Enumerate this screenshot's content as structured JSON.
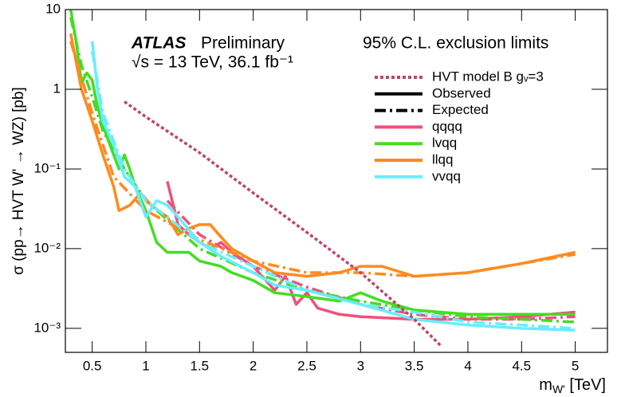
{
  "chart_data": {
    "type": "line",
    "log_y": true,
    "y_label": "σ (pp→ HVT W' → WZ) [pb]",
    "x_label": {
      "main": "m",
      "sub": "W'",
      "rest": " [TeV]"
    },
    "annotations": {
      "experiment": "ATLAS",
      "status": "Preliminary",
      "energy": "√s = 13 TeV, 36.1 fb⁻¹",
      "limits": "95% C.L. exclusion limits"
    },
    "xlim": [
      0.25,
      5.3
    ],
    "ylim": [
      0.0005,
      10
    ],
    "xticks": [
      0.5,
      1,
      1.5,
      2,
      2.5,
      3,
      3.5,
      4,
      4.5,
      5
    ],
    "yticks": [
      {
        "value": 0.001,
        "label": "10⁻³"
      },
      {
        "value": 0.01,
        "label": "10⁻²"
      },
      {
        "value": 0.1,
        "label": "10⁻¹"
      },
      1,
      10
    ],
    "model": {
      "name": "HVT model B gᵥ=3",
      "color": "#c0446e",
      "dash": "dotted",
      "x": [
        0.8,
        1,
        1.5,
        2,
        2.5,
        3,
        3.5,
        3.75
      ],
      "values": [
        0.7,
        0.45,
        0.16,
        0.05,
        0.016,
        0.005,
        0.0013,
        0.0006
      ]
    },
    "styles": [
      {
        "name": "Observed",
        "dash": "solid"
      },
      {
        "name": "Expected",
        "dash": "dashdot"
      }
    ],
    "channels": [
      {
        "name": "qqqq",
        "color": "#f0507a",
        "observed": {
          "x": [
            1.2,
            1.3,
            1.4,
            1.5,
            1.6,
            1.7,
            1.8,
            2.0,
            2.2,
            2.3,
            2.4,
            2.5,
            2.6,
            2.8,
            3,
            3.5,
            4,
            4.5,
            5
          ],
          "values": [
            0.07,
            0.02,
            0.015,
            0.012,
            0.01,
            0.012,
            0.009,
            0.006,
            0.003,
            0.0045,
            0.002,
            0.0028,
            0.0018,
            0.0015,
            0.0014,
            0.0013,
            0.0013,
            0.0014,
            0.0016
          ]
        },
        "expected": {
          "x": [
            1.2,
            1.5,
            2,
            2.5,
            3,
            3.5,
            4,
            4.5,
            5
          ],
          "values": [
            0.04,
            0.015,
            0.006,
            0.0033,
            0.002,
            0.0015,
            0.0013,
            0.0013,
            0.0014
          ]
        }
      },
      {
        "name": "lvqq",
        "color": "#44dd22",
        "observed": {
          "x": [
            0.3,
            0.35,
            0.4,
            0.45,
            0.5,
            0.55,
            0.6,
            0.7,
            0.75,
            0.8,
            0.85,
            0.9,
            1.0,
            1.1,
            1.2,
            1.4,
            1.5,
            1.7,
            1.8,
            2,
            2.2,
            2.5,
            2.8,
            3.0,
            3.2,
            3.5,
            4,
            4.5,
            5
          ],
          "values": [
            10,
            4,
            1.2,
            1.6,
            1.3,
            0.6,
            0.35,
            0.15,
            0.1,
            0.15,
            0.1,
            0.06,
            0.03,
            0.012,
            0.009,
            0.009,
            0.007,
            0.006,
            0.005,
            0.004,
            0.0028,
            0.0025,
            0.0022,
            0.0028,
            0.0022,
            0.0017,
            0.0015,
            0.0015,
            0.0015
          ]
        },
        "expected": {
          "x": [
            0.3,
            0.4,
            0.5,
            0.6,
            0.8,
            1,
            1.5,
            2,
            2.5,
            3,
            3.5,
            4,
            4.5,
            5
          ],
          "values": [
            8,
            2,
            0.8,
            0.3,
            0.1,
            0.04,
            0.01,
            0.005,
            0.003,
            0.0022,
            0.0017,
            0.0014,
            0.0013,
            0.0012
          ]
        }
      },
      {
        "name": "llqq",
        "color": "#ff8a1f",
        "observed": {
          "x": [
            0.3,
            0.4,
            0.5,
            0.6,
            0.7,
            0.75,
            0.85,
            0.95,
            1.05,
            1.2,
            1.3,
            1.4,
            1.5,
            1.6,
            1.7,
            1.8,
            2,
            2.2,
            2.5,
            2.8,
            3.0,
            3.2,
            3.5,
            4,
            4.5,
            5
          ],
          "values": [
            5,
            1.0,
            0.4,
            0.15,
            0.06,
            0.03,
            0.035,
            0.05,
            0.035,
            0.025,
            0.015,
            0.018,
            0.02,
            0.02,
            0.014,
            0.01,
            0.007,
            0.005,
            0.0045,
            0.005,
            0.006,
            0.006,
            0.0045,
            0.005,
            0.0065,
            0.009
          ]
        },
        "expected": {
          "x": [
            0.3,
            0.5,
            0.7,
            1,
            1.5,
            2,
            2.5,
            3,
            3.5,
            4,
            4.5,
            5
          ],
          "values": [
            4,
            0.5,
            0.08,
            0.03,
            0.013,
            0.007,
            0.005,
            0.005,
            0.0045,
            0.005,
            0.0065,
            0.0085
          ]
        }
      },
      {
        "name": "vvqq",
        "color": "#66eeff",
        "observed": {
          "x": [
            0.5,
            0.55,
            0.6,
            0.7,
            0.8,
            0.9,
            1.0,
            1.1,
            1.2,
            1.3,
            1.5,
            1.7,
            2,
            2.2,
            2.5,
            3,
            3.5,
            4,
            4.5,
            5
          ],
          "values": [
            4,
            1.0,
            0.4,
            0.2,
            0.08,
            0.06,
            0.025,
            0.04,
            0.035,
            0.025,
            0.012,
            0.008,
            0.005,
            0.0035,
            0.003,
            0.002,
            0.0013,
            0.0011,
            0.001,
            0.00095
          ]
        },
        "expected": {
          "x": [
            0.5,
            0.6,
            0.8,
            1,
            1.5,
            2,
            2.5,
            3,
            3.5,
            4,
            4.5,
            5
          ],
          "values": [
            3,
            0.5,
            0.1,
            0.04,
            0.012,
            0.006,
            0.003,
            0.002,
            0.0016,
            0.0012,
            0.0011,
            0.001
          ]
        }
      }
    ]
  }
}
